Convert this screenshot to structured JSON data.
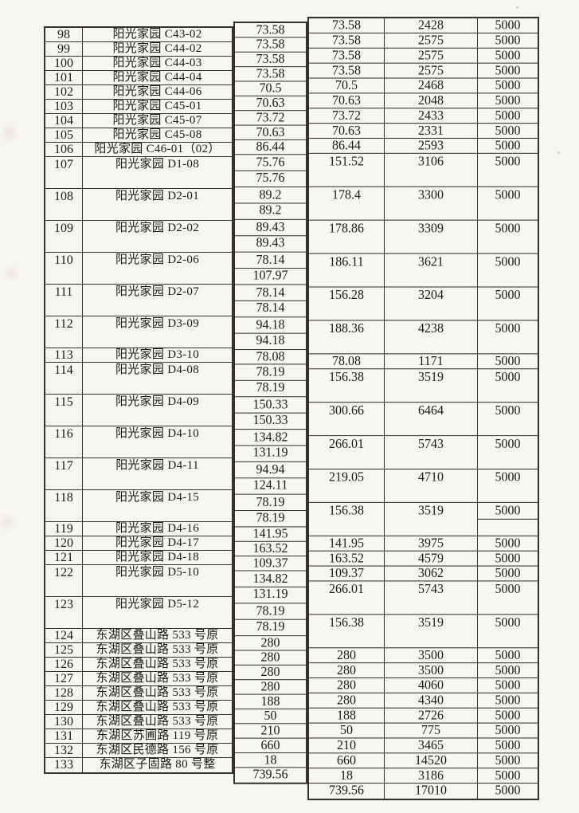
{
  "page": {
    "background": "#f7f6f2",
    "line_color": "#35322c",
    "ink_color": "#1b1916"
  },
  "table": {
    "fee_constant": "5000",
    "rows": [
      {
        "no": "98",
        "name": "阳光家园 C43-02",
        "areas": [
          "73.58"
        ],
        "total": "73.58",
        "value": "2428",
        "fee": "5000"
      },
      {
        "no": "99",
        "name": "阳光家园 C44-02",
        "areas": [
          "73.58"
        ],
        "total": "73.58",
        "value": "2575",
        "fee": "5000"
      },
      {
        "no": "100",
        "name": "阳光家园 C44-03",
        "areas": [
          "73.58"
        ],
        "total": "73.58",
        "value": "2575",
        "fee": "5000"
      },
      {
        "no": "101",
        "name": "阳光家园 C44-04",
        "areas": [
          "73.58"
        ],
        "total": "73.58",
        "value": "2575",
        "fee": "5000"
      },
      {
        "no": "102",
        "name": "阳光家园 C44-06",
        "areas": [
          "70.5"
        ],
        "total": "70.5",
        "value": "2468",
        "fee": "5000"
      },
      {
        "no": "103",
        "name": "阳光家园 C45-01",
        "areas": [
          "70.63"
        ],
        "total": "70.63",
        "value": "2048",
        "fee": "5000"
      },
      {
        "no": "104",
        "name": "阳光家园 C45-07",
        "areas": [
          "73.72"
        ],
        "total": "73.72",
        "value": "2433",
        "fee": "5000"
      },
      {
        "no": "105",
        "name": "阳光家园 C45-08",
        "areas": [
          "70.63"
        ],
        "total": "70.63",
        "value": "2331",
        "fee": "5000"
      },
      {
        "no": "106",
        "name": "阳光家园 C46-01（02）",
        "areas": [
          "86.44"
        ],
        "total": "86.44",
        "value": "2593",
        "fee": "5000"
      },
      {
        "no": "107",
        "name": "阳光家园 D1-08",
        "areas": [
          "75.76",
          "75.76"
        ],
        "total": "151.52",
        "value": "3106",
        "fee": "5000"
      },
      {
        "no": "108",
        "name": "阳光家园 D2-01",
        "areas": [
          "89.2",
          "89.2"
        ],
        "total": "178.4",
        "value": "3300",
        "fee": "5000"
      },
      {
        "no": "109",
        "name": "阳光家园 D2-02",
        "areas": [
          "89.43",
          "89.43"
        ],
        "total": "178.86",
        "value": "3309",
        "fee": "5000"
      },
      {
        "no": "110",
        "name": "阳光家园 D2-06",
        "areas": [
          "78.14",
          "107.97"
        ],
        "total": "186.11",
        "value": "3621",
        "fee": "5000"
      },
      {
        "no": "111",
        "name": "阳光家园 D2-07",
        "areas": [
          "78.14",
          "78.14"
        ],
        "total": "156.28",
        "value": "3204",
        "fee": "5000"
      },
      {
        "no": "112",
        "name": "阳光家园 D3-09",
        "areas": [
          "94.18",
          "94.18"
        ],
        "total": "188.36",
        "value": "4238",
        "fee": "5000"
      },
      {
        "no": "113",
        "name": "阳光家园 D3-10",
        "areas": [
          "78.08"
        ],
        "total": "78.08",
        "value": "1171",
        "fee": "5000"
      },
      {
        "no": "114",
        "name": "阳光家园 D4-08",
        "areas": [
          "78.19",
          "78.19"
        ],
        "total": "156.38",
        "value": "3519",
        "fee": "5000"
      },
      {
        "no": "115",
        "name": "阳光家园 D4-09",
        "areas": [
          "150.33",
          "150.33"
        ],
        "total": "300.66",
        "value": "6464",
        "fee": "5000"
      },
      {
        "no": "116",
        "name": "阳光家园 D4-10",
        "areas": [
          "134.82",
          "131.19"
        ],
        "total": "266.01",
        "value": "5743",
        "fee": "5000"
      },
      {
        "no": "117",
        "name": "阳光家园 D4-11",
        "areas": [
          "94.94",
          "124.11"
        ],
        "total": "219.05",
        "value": "4710",
        "fee": "5000"
      },
      {
        "no": "118",
        "name": "阳光家园 D4-15",
        "areas": [
          "78.19",
          "78.19"
        ],
        "total": "156.38",
        "value": "3519",
        "fee": "5000",
        "fee_split": true
      },
      {
        "no": "119",
        "name": "阳光家园 D4-16",
        "areas": [
          "141.95"
        ],
        "total": "141.95",
        "value": "3975",
        "fee": "5000"
      },
      {
        "no": "120",
        "name": "阳光家园 D4-17",
        "areas": [
          "163.52"
        ],
        "total": "163.52",
        "value": "4579",
        "fee": "5000"
      },
      {
        "no": "121",
        "name": "阳光家园 D4-18",
        "areas": [
          "109.37"
        ],
        "total": "109.37",
        "value": "3062",
        "fee": "5000"
      },
      {
        "no": "122",
        "name": "阳光家园 D5-10",
        "areas": [
          "134.82",
          "131.19"
        ],
        "total": "266.01",
        "value": "5743",
        "fee": "5000"
      },
      {
        "no": "123",
        "name": "阳光家园 D5-12",
        "areas": [
          "78.19",
          "78.19"
        ],
        "total": "156.38",
        "value": "3519",
        "fee": "5000"
      },
      {
        "no": "124",
        "name": "东湖区叠山路 533 号原",
        "areas": [
          "280"
        ],
        "total": "280",
        "value": "3500",
        "fee": "5000"
      },
      {
        "no": "125",
        "name": "东湖区叠山路 533 号原",
        "areas": [
          "280"
        ],
        "total": "280",
        "value": "3500",
        "fee": "5000"
      },
      {
        "no": "126",
        "name": "东湖区叠山路 533 号原",
        "areas": [
          "280"
        ],
        "total": "280",
        "value": "4060",
        "fee": "5000"
      },
      {
        "no": "127",
        "name": "东湖区叠山路 533 号原",
        "areas": [
          "280"
        ],
        "total": "280",
        "value": "4340",
        "fee": "5000"
      },
      {
        "no": "128",
        "name": "东湖区叠山路 533 号原",
        "areas": [
          "188"
        ],
        "total": "188",
        "value": "2726",
        "fee": "5000"
      },
      {
        "no": "129",
        "name": "东湖区叠山路 533 号原",
        "areas": [
          "50"
        ],
        "total": "50",
        "value": "775",
        "fee": "5000"
      },
      {
        "no": "130",
        "name": "东湖区叠山路 533 号原",
        "areas": [
          "210"
        ],
        "total": "210",
        "value": "3465",
        "fee": "5000"
      },
      {
        "no": "131",
        "name": "东湖区苏圃路 119 号原",
        "areas": [
          "660"
        ],
        "total": "660",
        "value": "14520",
        "fee": "5000"
      },
      {
        "no": "132",
        "name": "东湖区民德路 156 号原",
        "areas": [
          "18"
        ],
        "total": "18",
        "value": "3186",
        "fee": "5000"
      },
      {
        "no": "133",
        "name": "东湖区子固路 80 号整",
        "areas": [
          "739.56"
        ],
        "total": "739.56",
        "value": "17010",
        "fee": "5000"
      }
    ]
  }
}
